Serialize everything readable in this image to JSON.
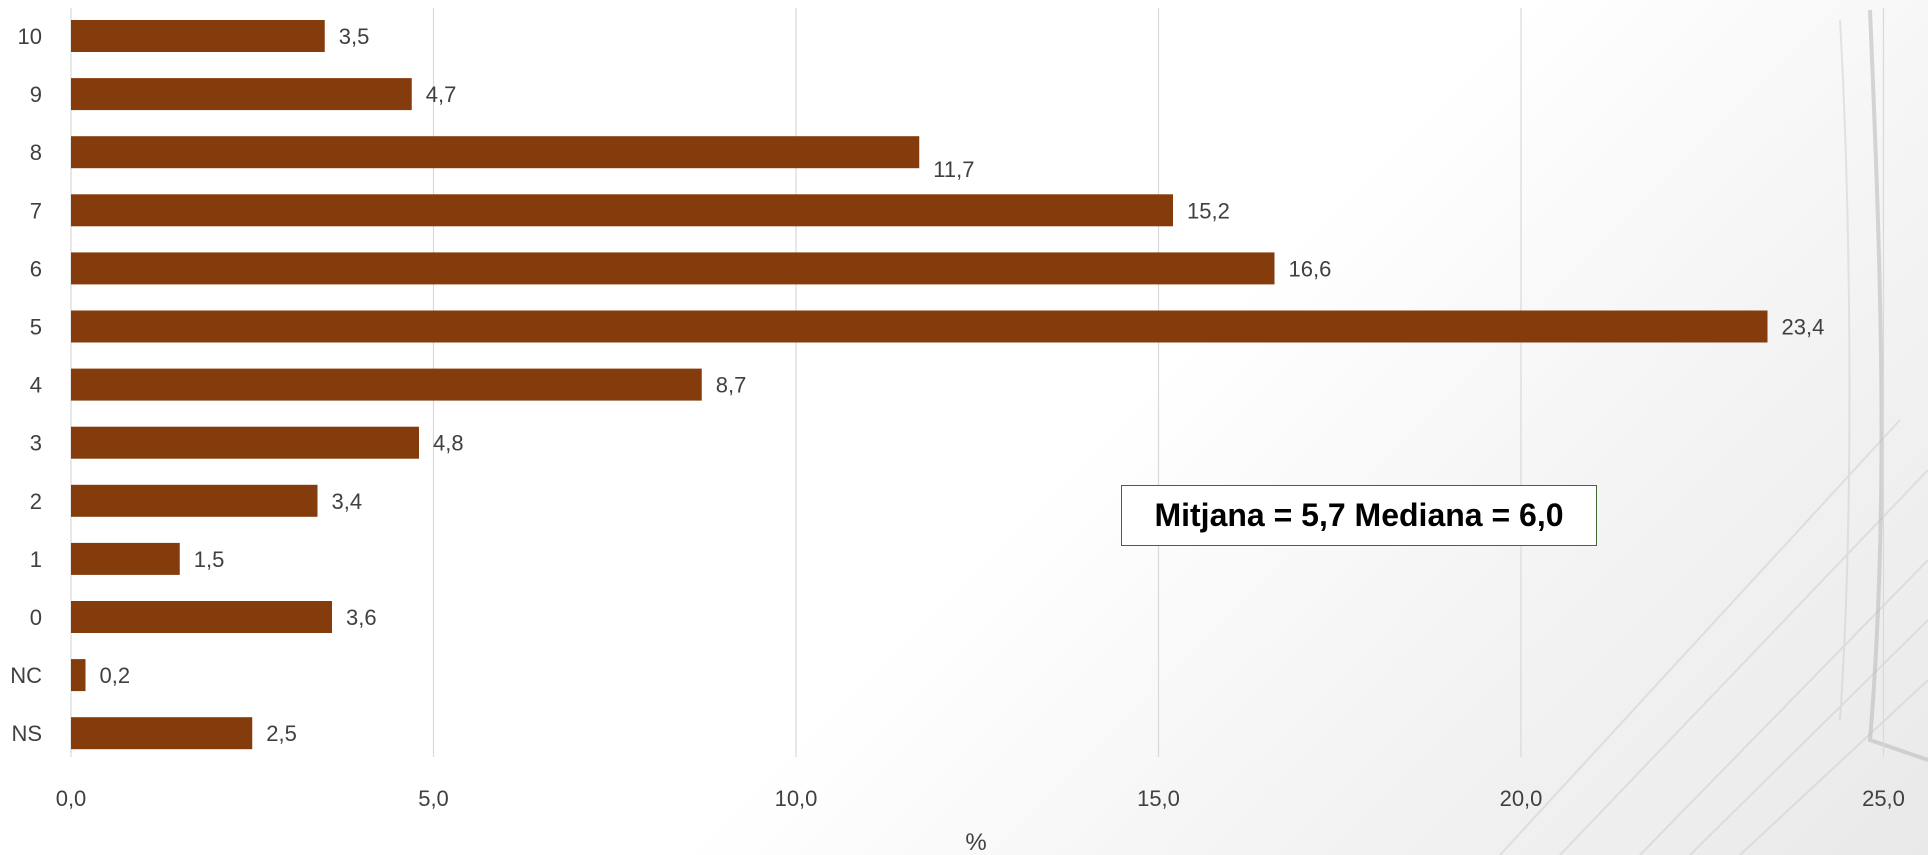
{
  "chart_data": {
    "type": "bar",
    "orientation": "horizontal",
    "categories": [
      "10",
      "9",
      "8",
      "7",
      "6",
      "5",
      "4",
      "3",
      "2",
      "1",
      "0",
      "NC",
      "NS"
    ],
    "values": [
      3.5,
      4.7,
      11.7,
      15.2,
      16.6,
      23.4,
      8.7,
      4.8,
      3.4,
      1.5,
      3.6,
      0.2,
      2.5
    ],
    "value_labels": [
      "3,5",
      "4,7",
      "11,7",
      "15,2",
      "16,6",
      "23,4",
      "8,7",
      "4,8",
      "3,4",
      "1,5",
      "3,6",
      "0,2",
      "2,5"
    ],
    "xlabel": "%",
    "xlim": [
      0,
      25
    ],
    "xticks": [
      "0,0",
      "5,0",
      "10,0",
      "15,0",
      "20,0",
      "25,0"
    ],
    "grid": "vertical",
    "annotation": "Mitjana = 5,7 Mediana = 6,0",
    "colors": {
      "bar": "#843c0c",
      "grid": "#d9d9d9",
      "annotation_border": "#3d6b32"
    }
  }
}
